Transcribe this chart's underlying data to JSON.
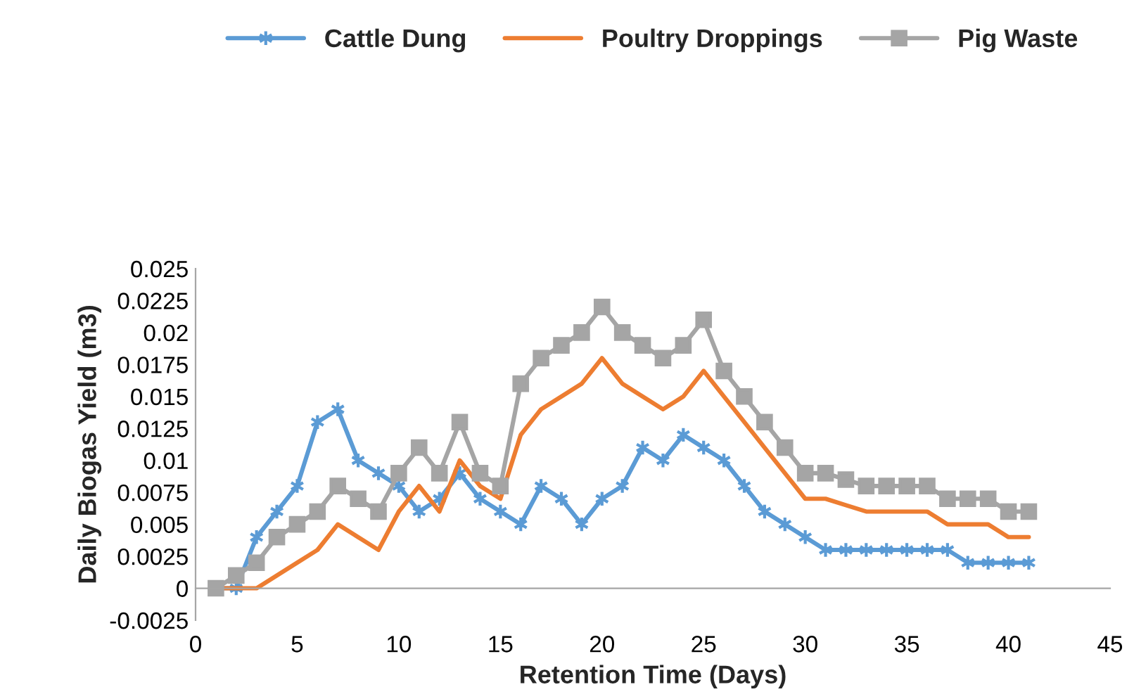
{
  "chart_data": {
    "type": "line",
    "xlabel": "Retention Time (Days)",
    "ylabel": "Daily Biogas Yield (m3)",
    "x": [
      1,
      2,
      3,
      4,
      5,
      6,
      7,
      8,
      9,
      10,
      11,
      12,
      13,
      14,
      15,
      16,
      17,
      18,
      19,
      20,
      21,
      22,
      23,
      24,
      25,
      26,
      27,
      28,
      29,
      30,
      31,
      32,
      33,
      34,
      35,
      36,
      37,
      38,
      39,
      40,
      41
    ],
    "series": [
      {
        "name": "Cattle Dung",
        "color": "#5b9bd5",
        "marker": "cross",
        "values": [
          0,
          0,
          0.004,
          0.006,
          0.008,
          0.013,
          0.014,
          0.01,
          0.009,
          0.008,
          0.006,
          0.007,
          0.009,
          0.007,
          0.006,
          0.005,
          0.008,
          0.007,
          0.005,
          0.007,
          0.008,
          0.011,
          0.01,
          0.012,
          0.011,
          0.01,
          0.008,
          0.006,
          0.005,
          0.004,
          0.003,
          0.003,
          0.003,
          0.003,
          0.003,
          0.003,
          0.003,
          0.002,
          0.002,
          0.002,
          0.002
        ]
      },
      {
        "name": "Poultry Droppings",
        "color": "#ed7d31",
        "marker": "none",
        "values": [
          0,
          0,
          0,
          0.001,
          0.002,
          0.003,
          0.005,
          0.004,
          0.003,
          0.006,
          0.008,
          0.006,
          0.01,
          0.008,
          0.007,
          0.012,
          0.014,
          0.015,
          0.016,
          0.018,
          0.016,
          0.015,
          0.014,
          0.015,
          0.017,
          0.015,
          0.013,
          0.011,
          0.009,
          0.007,
          0.007,
          0.0065,
          0.006,
          0.006,
          0.006,
          0.006,
          0.005,
          0.005,
          0.005,
          0.004,
          0.004
        ]
      },
      {
        "name": "Pig Waste",
        "color": "#a5a5a5",
        "marker": "square",
        "values": [
          0,
          0.001,
          0.002,
          0.004,
          0.005,
          0.006,
          0.008,
          0.007,
          0.006,
          0.009,
          0.011,
          0.009,
          0.013,
          0.009,
          0.008,
          0.016,
          0.018,
          0.019,
          0.02,
          0.022,
          0.02,
          0.019,
          0.018,
          0.019,
          0.021,
          0.017,
          0.015,
          0.013,
          0.011,
          0.009,
          0.009,
          0.0085,
          0.008,
          0.008,
          0.008,
          0.008,
          0.007,
          0.007,
          0.007,
          0.006,
          0.006
        ]
      }
    ],
    "xlim": [
      0,
      45
    ],
    "xticks": [
      0,
      5,
      10,
      15,
      20,
      25,
      30,
      35,
      40,
      45
    ],
    "ylim": [
      -0.0025,
      0.025
    ],
    "yticks": [
      -0.0025,
      0,
      0.0025,
      0.005,
      0.0075,
      0.01,
      0.0125,
      0.015,
      0.0175,
      0.02,
      0.0225,
      0.025
    ],
    "grid": false,
    "legend": "top",
    "line_style": "solid"
  }
}
